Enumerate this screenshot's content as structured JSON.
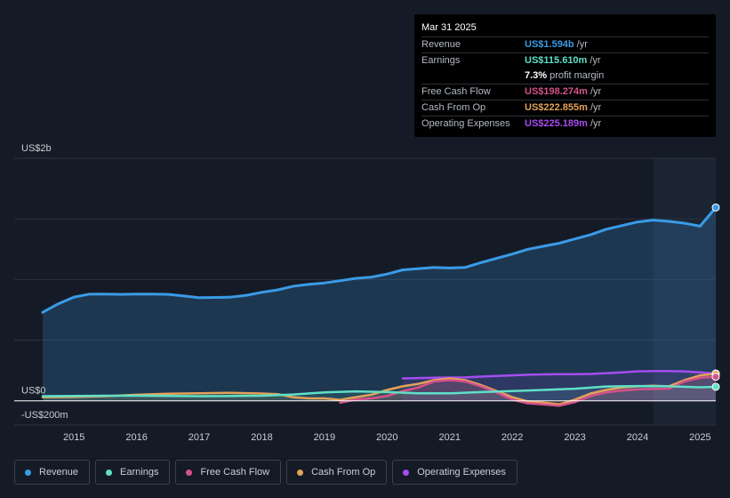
{
  "chart_data": {
    "type": "line",
    "title": "",
    "y_axis_labels": {
      "top": "US$2b",
      "zero": "US$0",
      "bottom": "-US$200m"
    },
    "ylim": [
      -200,
      2000
    ],
    "xlim": [
      2014.5,
      2025.25
    ],
    "x_ticks": [
      "2015",
      "2016",
      "2017",
      "2018",
      "2019",
      "2020",
      "2021",
      "2022",
      "2023",
      "2024",
      "2025"
    ],
    "highlight_from": 2024.25,
    "series": [
      {
        "name": "Revenue",
        "color": "#3a9be6",
        "area": true,
        "points": [
          [
            2014.5,
            730
          ],
          [
            2014.75,
            800
          ],
          [
            2015.0,
            855
          ],
          [
            2015.25,
            880
          ],
          [
            2015.5,
            880
          ],
          [
            2015.75,
            878
          ],
          [
            2016.0,
            880
          ],
          [
            2016.25,
            880
          ],
          [
            2016.5,
            878
          ],
          [
            2016.75,
            865
          ],
          [
            2017.0,
            850
          ],
          [
            2017.25,
            852
          ],
          [
            2017.5,
            855
          ],
          [
            2017.75,
            870
          ],
          [
            2018.0,
            895
          ],
          [
            2018.25,
            915
          ],
          [
            2018.5,
            945
          ],
          [
            2018.75,
            960
          ],
          [
            2019.0,
            972
          ],
          [
            2019.25,
            990
          ],
          [
            2019.5,
            1010
          ],
          [
            2019.75,
            1020
          ],
          [
            2020.0,
            1045
          ],
          [
            2020.25,
            1080
          ],
          [
            2020.5,
            1090
          ],
          [
            2020.75,
            1100
          ],
          [
            2021.0,
            1095
          ],
          [
            2021.25,
            1100
          ],
          [
            2021.5,
            1140
          ],
          [
            2021.75,
            1175
          ],
          [
            2022.0,
            1210
          ],
          [
            2022.25,
            1250
          ],
          [
            2022.5,
            1275
          ],
          [
            2022.75,
            1300
          ],
          [
            2023.0,
            1335
          ],
          [
            2023.25,
            1370
          ],
          [
            2023.5,
            1415
          ],
          [
            2023.75,
            1445
          ],
          [
            2024.0,
            1475
          ],
          [
            2024.25,
            1490
          ],
          [
            2024.5,
            1480
          ],
          [
            2024.75,
            1465
          ],
          [
            2025.0,
            1440
          ],
          [
            2025.25,
            1594
          ]
        ]
      },
      {
        "name": "Earnings",
        "color": "#5fe0c7",
        "area": true,
        "points": [
          [
            2014.5,
            38
          ],
          [
            2015.0,
            40
          ],
          [
            2015.5,
            42
          ],
          [
            2016.0,
            42
          ],
          [
            2016.5,
            40
          ],
          [
            2017.0,
            38
          ],
          [
            2017.5,
            40
          ],
          [
            2018.0,
            42
          ],
          [
            2018.5,
            52
          ],
          [
            2019.0,
            70
          ],
          [
            2019.5,
            78
          ],
          [
            2020.0,
            72
          ],
          [
            2020.5,
            62
          ],
          [
            2021.0,
            62
          ],
          [
            2021.5,
            72
          ],
          [
            2022.0,
            80
          ],
          [
            2022.5,
            90
          ],
          [
            2023.0,
            100
          ],
          [
            2023.5,
            118
          ],
          [
            2024.0,
            122
          ],
          [
            2024.5,
            120
          ],
          [
            2025.0,
            112
          ],
          [
            2025.25,
            115.61
          ]
        ]
      },
      {
        "name": "Free Cash Flow",
        "color": "#d6528a",
        "area": true,
        "points": [
          [
            2019.25,
            -15
          ],
          [
            2019.5,
            10
          ],
          [
            2019.75,
            20
          ],
          [
            2020.0,
            40
          ],
          [
            2020.25,
            80
          ],
          [
            2020.5,
            110
          ],
          [
            2020.75,
            160
          ],
          [
            2021.0,
            170
          ],
          [
            2021.25,
            160
          ],
          [
            2021.5,
            120
          ],
          [
            2021.75,
            70
          ],
          [
            2022.0,
            10
          ],
          [
            2022.25,
            -20
          ],
          [
            2022.5,
            -30
          ],
          [
            2022.75,
            -40
          ],
          [
            2023.0,
            -10
          ],
          [
            2023.25,
            40
          ],
          [
            2023.5,
            70
          ],
          [
            2023.75,
            85
          ],
          [
            2024.0,
            95
          ],
          [
            2024.25,
            98
          ],
          [
            2024.5,
            100
          ],
          [
            2024.75,
            160
          ],
          [
            2025.0,
            190
          ],
          [
            2025.25,
            198.274
          ]
        ]
      },
      {
        "name": "Cash From Op",
        "color": "#e3a25b",
        "area": true,
        "points": [
          [
            2014.5,
            30
          ],
          [
            2015.0,
            32
          ],
          [
            2015.5,
            38
          ],
          [
            2016.0,
            50
          ],
          [
            2016.5,
            58
          ],
          [
            2017.0,
            62
          ],
          [
            2017.5,
            66
          ],
          [
            2018.0,
            60
          ],
          [
            2018.25,
            55
          ],
          [
            2018.5,
            30
          ],
          [
            2018.75,
            20
          ],
          [
            2019.0,
            20
          ],
          [
            2019.25,
            8
          ],
          [
            2019.5,
            30
          ],
          [
            2019.75,
            50
          ],
          [
            2020.0,
            90
          ],
          [
            2020.25,
            120
          ],
          [
            2020.5,
            140
          ],
          [
            2020.75,
            170
          ],
          [
            2021.0,
            185
          ],
          [
            2021.25,
            170
          ],
          [
            2021.5,
            130
          ],
          [
            2021.75,
            80
          ],
          [
            2022.0,
            30
          ],
          [
            2022.25,
            -5
          ],
          [
            2022.5,
            -15
          ],
          [
            2022.75,
            -30
          ],
          [
            2023.0,
            10
          ],
          [
            2023.25,
            60
          ],
          [
            2023.5,
            90
          ],
          [
            2023.75,
            110
          ],
          [
            2024.0,
            120
          ],
          [
            2024.25,
            125
          ],
          [
            2024.5,
            120
          ],
          [
            2024.75,
            170
          ],
          [
            2025.0,
            210
          ],
          [
            2025.25,
            222.855
          ]
        ]
      },
      {
        "name": "Operating Expenses",
        "color": "#a44df0",
        "area": true,
        "points": [
          [
            2020.25,
            185
          ],
          [
            2020.5,
            188
          ],
          [
            2020.75,
            190
          ],
          [
            2021.0,
            192
          ],
          [
            2021.25,
            193
          ],
          [
            2021.5,
            200
          ],
          [
            2021.75,
            205
          ],
          [
            2022.0,
            210
          ],
          [
            2022.25,
            215
          ],
          [
            2022.5,
            218
          ],
          [
            2022.75,
            220
          ],
          [
            2023.0,
            220
          ],
          [
            2023.25,
            222
          ],
          [
            2023.5,
            228
          ],
          [
            2023.75,
            235
          ],
          [
            2024.0,
            243
          ],
          [
            2024.25,
            245
          ],
          [
            2024.5,
            245
          ],
          [
            2024.75,
            243
          ],
          [
            2025.0,
            235
          ],
          [
            2025.25,
            225.189
          ]
        ]
      }
    ]
  },
  "tooltip": {
    "date": "Mar 31 2025",
    "rows": [
      {
        "label": "Revenue",
        "value": "US$1.594b",
        "unit": "/yr",
        "color": "#3a9be6"
      },
      {
        "label": "Earnings",
        "value": "US$115.610m",
        "unit": "/yr",
        "color": "#5fe0c7"
      },
      {
        "label": "",
        "value": "7.3%",
        "unit": "profit margin",
        "color": "#ffffff"
      },
      {
        "label": "Free Cash Flow",
        "value": "US$198.274m",
        "unit": "/yr",
        "color": "#d6528a"
      },
      {
        "label": "Cash From Op",
        "value": "US$222.855m",
        "unit": "/yr",
        "color": "#e3a25b"
      },
      {
        "label": "Operating Expenses",
        "value": "US$225.189m",
        "unit": "/yr",
        "color": "#a44df0"
      }
    ]
  },
  "legend": [
    {
      "label": "Revenue",
      "color": "#3a9be6"
    },
    {
      "label": "Earnings",
      "color": "#5fe0c7"
    },
    {
      "label": "Free Cash Flow",
      "color": "#d6528a"
    },
    {
      "label": "Cash From Op",
      "color": "#e3a25b"
    },
    {
      "label": "Operating Expenses",
      "color": "#a44df0"
    }
  ]
}
